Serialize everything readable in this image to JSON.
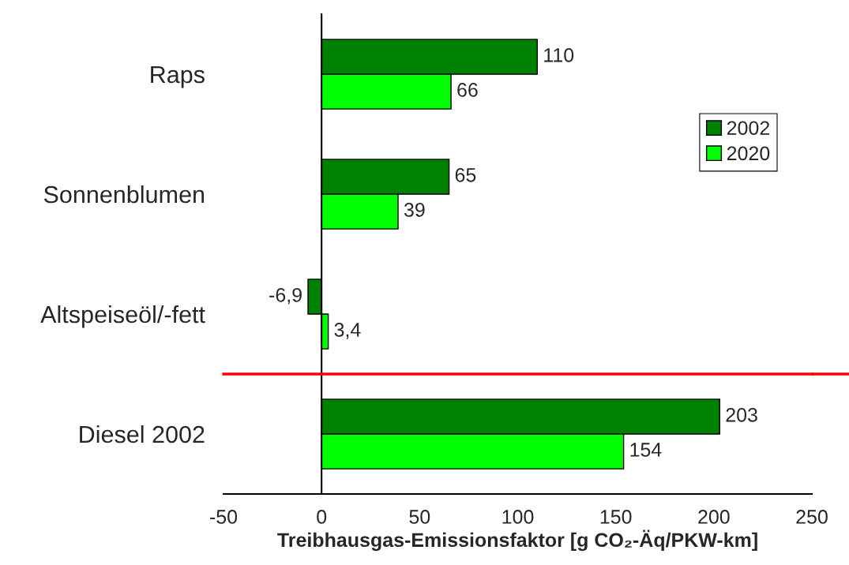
{
  "chart_data": [
    {
      "type": "bar",
      "orientation": "horizontal",
      "categories": [
        "Raps",
        "Sonnenblumen",
        "Altspeiseöl/-fett"
      ],
      "series": [
        {
          "name": "2002",
          "color": "#008000",
          "values": [
            110,
            65,
            -6.9
          ],
          "value_labels": [
            "110",
            "65",
            "-6,9"
          ]
        },
        {
          "name": "2020",
          "color": "#00ff00",
          "values": [
            66,
            39,
            3.4
          ],
          "value_labels": [
            "66",
            "39",
            "3,4"
          ]
        }
      ],
      "xlim": [
        -50,
        250
      ],
      "tick_labels": "y",
      "legend": "top right"
    },
    {
      "type": "bar",
      "orientation": "horizontal",
      "categories": [
        "Diesel 2002"
      ],
      "series": [
        {
          "color": "#008000",
          "values": [
            203
          ],
          "value_labels": [
            "203"
          ]
        },
        {
          "color": "#00ff00",
          "values": [
            154
          ],
          "value_labels": [
            "154"
          ]
        }
      ],
      "xlabel": "Treibhausgas-Emissionsfaktor [g CO₂-Äq/PKW-km]",
      "xlim": [
        -50,
        250
      ],
      "xticks": [
        -50,
        0,
        50,
        100,
        150,
        200,
        250
      ]
    }
  ]
}
